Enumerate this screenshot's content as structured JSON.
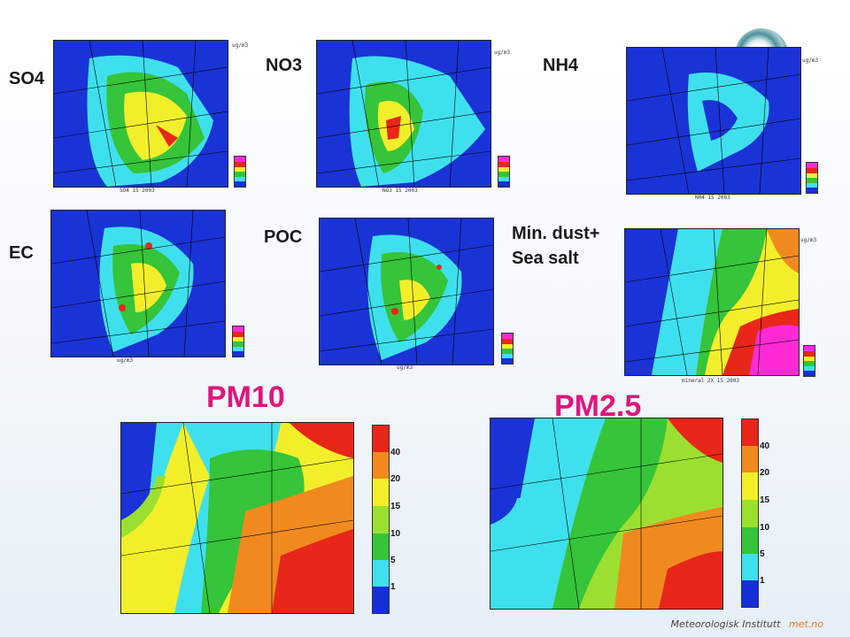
{
  "panels": {
    "so4": {
      "label": "SO4",
      "caption": "SO4 15 2003"
    },
    "no3": {
      "label": "NO3",
      "caption": "NO3 15 2003"
    },
    "nh4": {
      "label": "NH4",
      "caption": "NH4 15 2003"
    },
    "ec": {
      "label": "EC",
      "caption": "ug/m3"
    },
    "poc": {
      "label": "POC",
      "caption": "ug/m3"
    },
    "dust": {
      "label_line1": "Min. dust+",
      "label_line2": "Sea salt",
      "caption": "mineral 2X 15 2003"
    }
  },
  "units_label": "ug/m3",
  "pm10": {
    "title": "PM10",
    "ticks": [
      "40",
      "20",
      "15",
      "10",
      "5",
      "1"
    ]
  },
  "pm25": {
    "title": "PM2.5",
    "ticks": [
      "40",
      "20",
      "15",
      "10",
      "5",
      "1"
    ]
  },
  "footer": {
    "institute": "Meteorologisk Institutt",
    "site": "met.no"
  },
  "colors": {
    "title": "#e0157d",
    "scale": [
      "#e8261a",
      "#f08a1e",
      "#f2ef2a",
      "#9be030",
      "#35c43a",
      "#3fe0ee",
      "#1530d8"
    ],
    "ocean": "#1a33d6"
  }
}
